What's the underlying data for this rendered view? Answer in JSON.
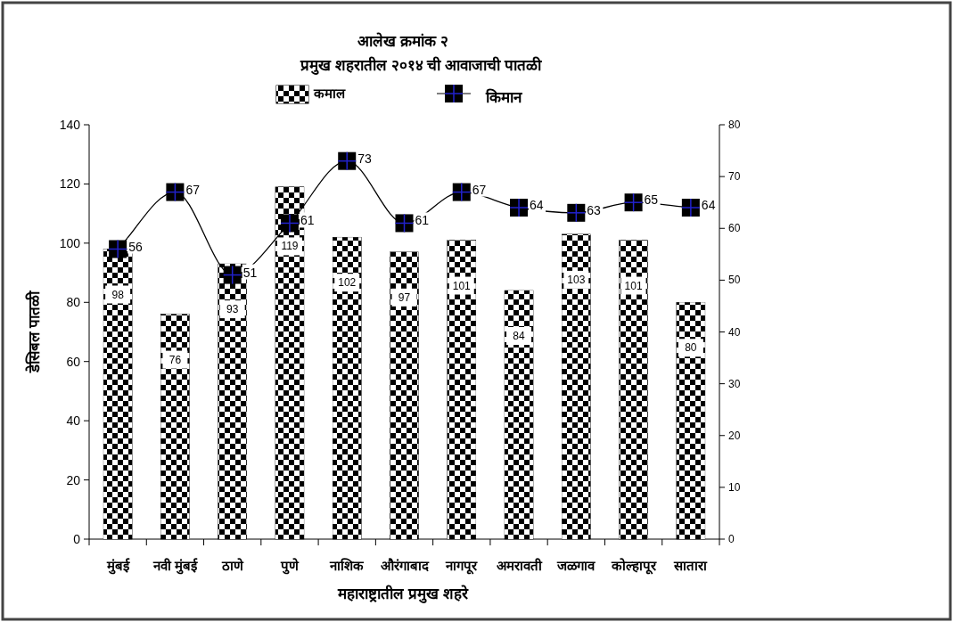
{
  "chart_data": {
    "type": "bar",
    "title": "आलेख क्रमांक २",
    "subtitle": "प्रमुख शहरातील २०१४ ची आवाजाची पातळी",
    "xlabel": "महाराष्ट्रातील प्रमुख शहरे",
    "ylabel": "डेसिबल पातळी",
    "categories": [
      "मुंबई",
      "नवी मुंबई",
      "ठाणे",
      "पुणे",
      "नाशिक",
      "औरंगाबाद",
      "नागपूर",
      "अमरावती",
      "जळगाव",
      "कोल्हापूर",
      "सातारा"
    ],
    "series": [
      {
        "name": "कमाल",
        "color": "#000000",
        "values": [
          98,
          76,
          93,
          119,
          102,
          97,
          101,
          84,
          103,
          101,
          80
        ]
      },
      {
        "name": "किमान",
        "type": "line",
        "axis": "y2",
        "color": "#000000",
        "values": [
          56,
          67,
          51,
          61,
          73,
          61,
          67,
          64,
          63,
          65,
          64
        ]
      }
    ],
    "ylim": [
      0,
      140
    ],
    "yticks": [
      0,
      20,
      40,
      60,
      80,
      100,
      120,
      140
    ],
    "y2lim": [
      0,
      80
    ],
    "y2ticks": [
      0,
      10,
      20,
      30,
      40,
      50,
      60,
      70,
      80
    ],
    "data_labels": true,
    "marker": "square",
    "legend": "top",
    "grid": false
  }
}
